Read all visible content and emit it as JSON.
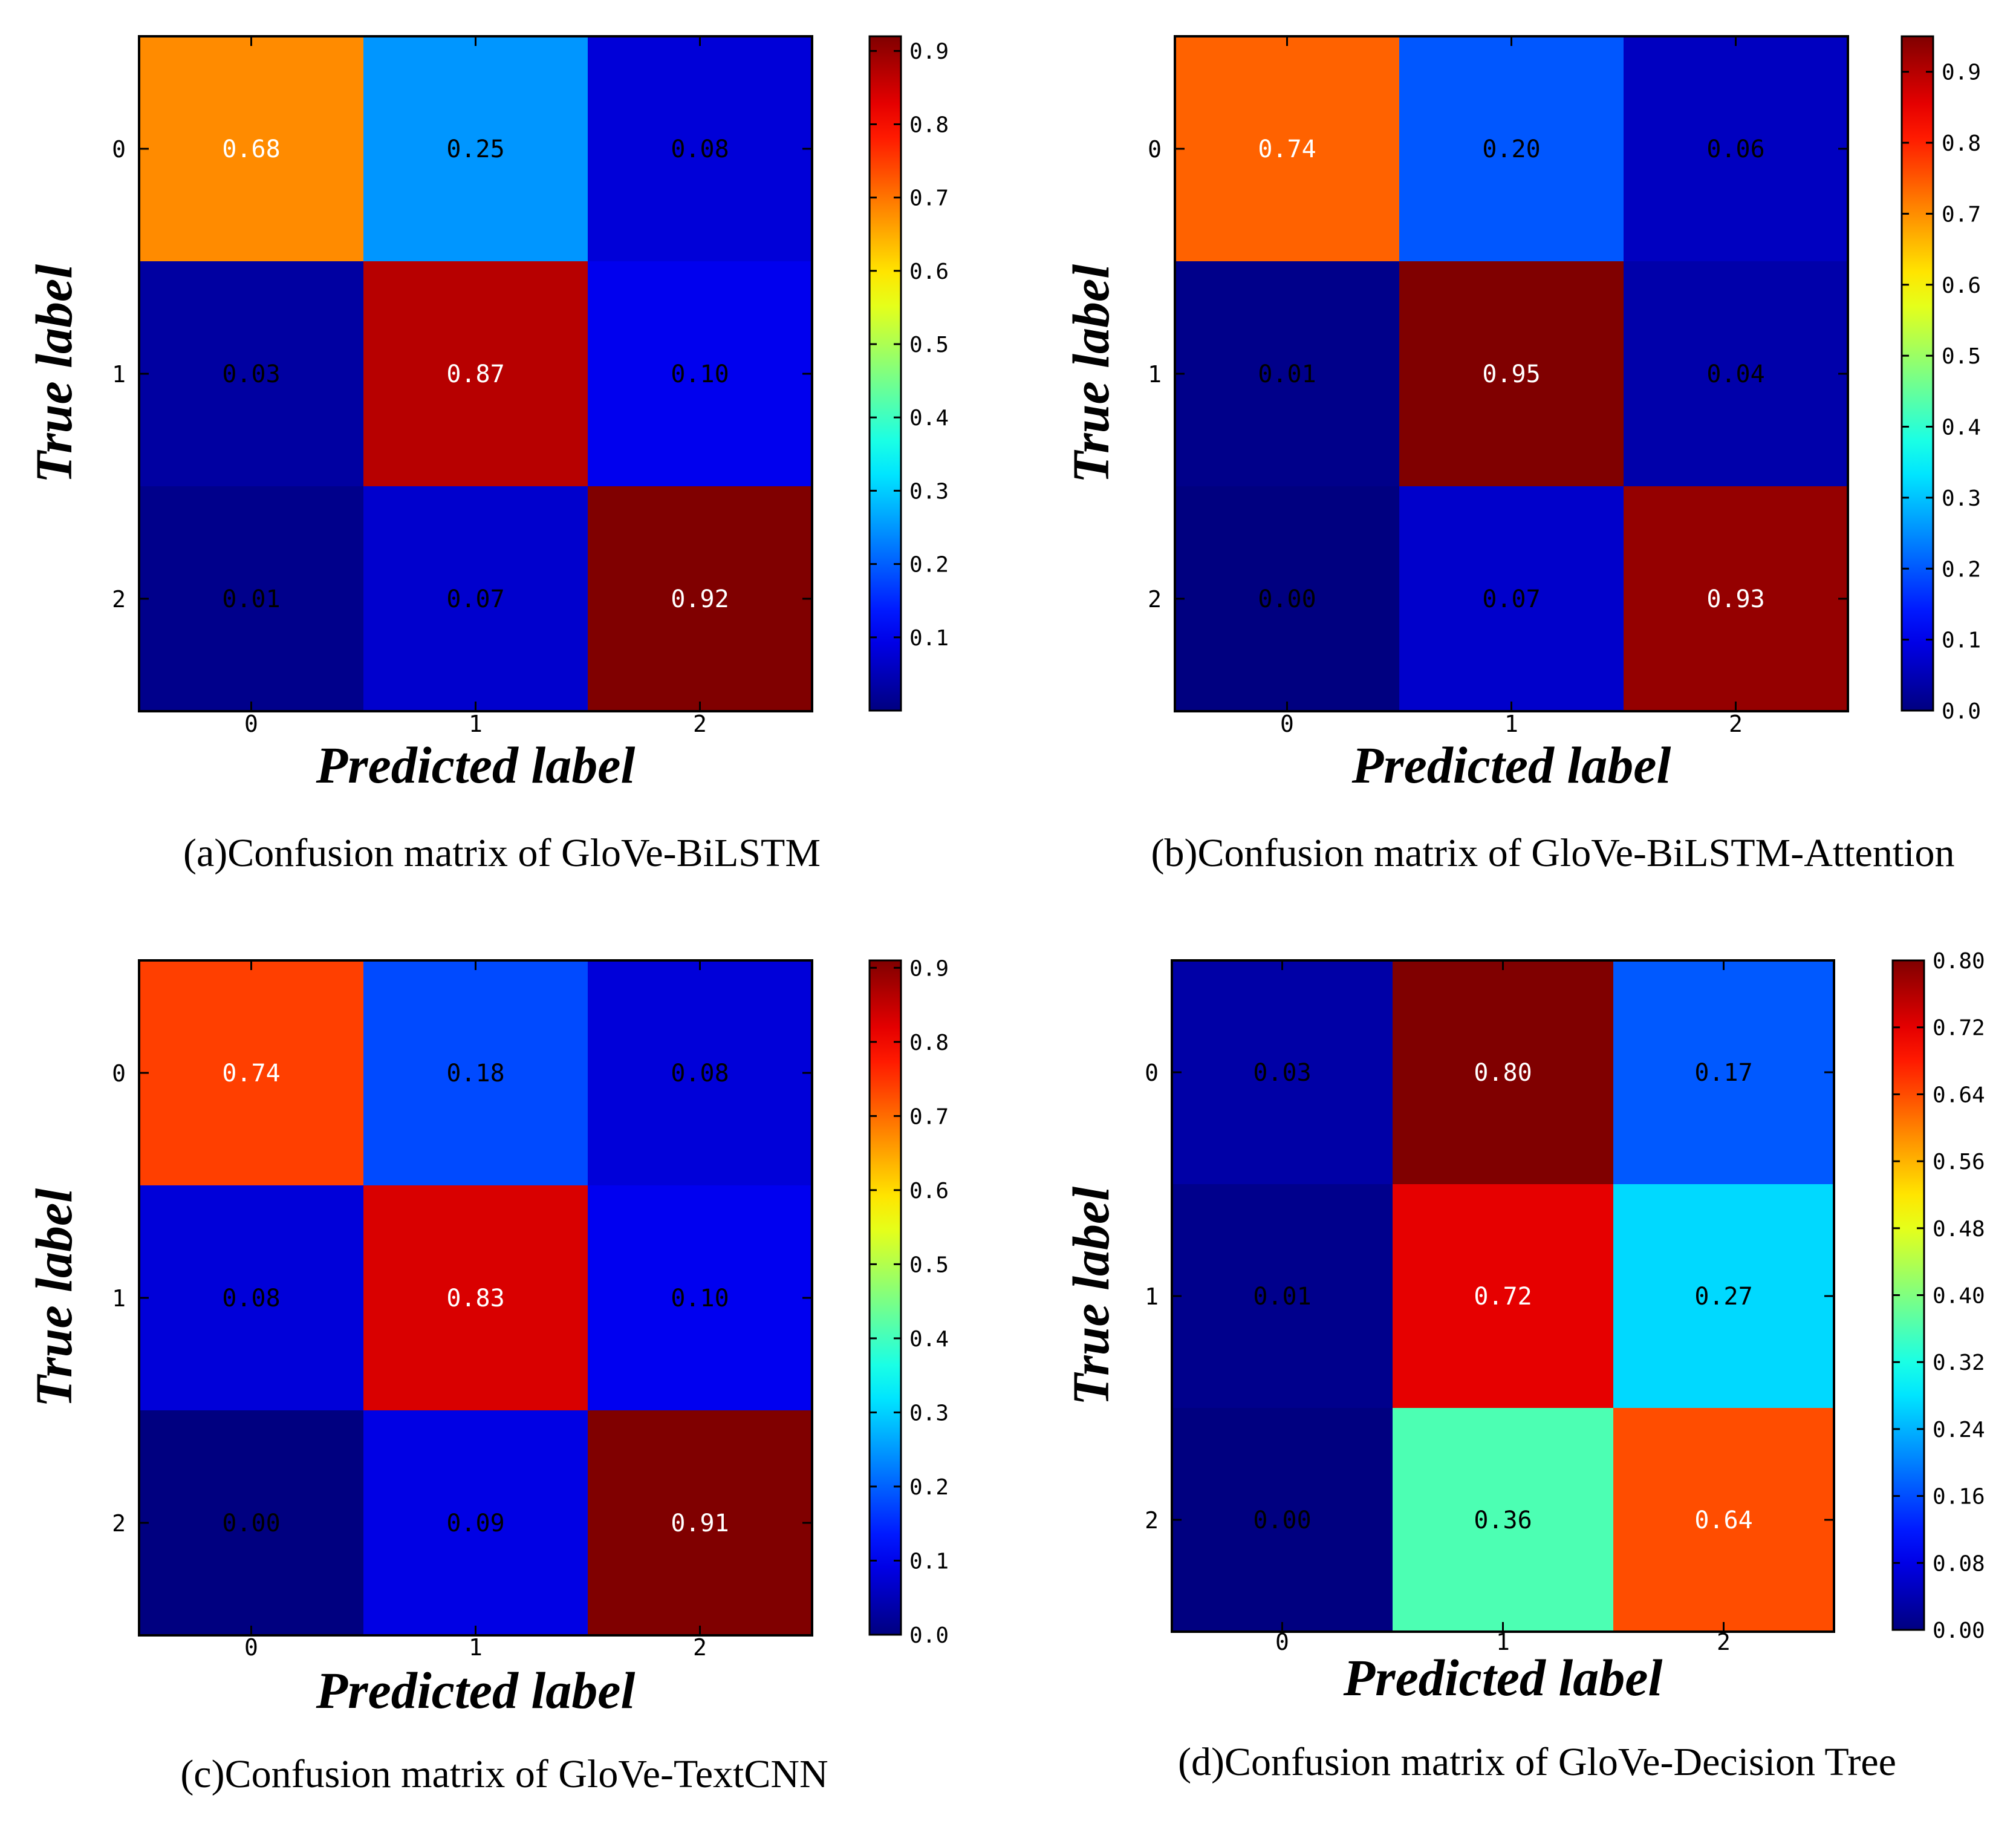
{
  "chart_data": [
    {
      "type": "heatmap",
      "caption": "(a)Confusion matrix of GloVe-BiLSTM",
      "xlabel": "Predicted label",
      "ylabel": "True label",
      "x_categories": [
        "0",
        "1",
        "2"
      ],
      "y_categories": [
        "0",
        "1",
        "2"
      ],
      "values": [
        [
          0.68,
          0.25,
          0.08
        ],
        [
          0.03,
          0.87,
          0.1
        ],
        [
          0.01,
          0.07,
          0.92
        ]
      ],
      "cell_labels": [
        [
          "0.68",
          "0.25",
          "0.08"
        ],
        [
          "0.03",
          "0.87",
          "0.10"
        ],
        [
          "0.01",
          "0.07",
          "0.92"
        ]
      ],
      "colormap": "jet",
      "color_range": [
        0.0,
        0.92
      ],
      "colorbar_ticks": [
        0.1,
        0.2,
        0.3,
        0.4,
        0.5,
        0.6,
        0.7,
        0.8,
        0.9
      ],
      "colorbar_tick_labels": [
        "0.1",
        "0.2",
        "0.3",
        "0.4",
        "0.5",
        "0.6",
        "0.7",
        "0.8",
        "0.9"
      ]
    },
    {
      "type": "heatmap",
      "caption": "(b)Confusion matrix of GloVe-BiLSTM-Attention",
      "xlabel": "Predicted label",
      "ylabel": "True label",
      "x_categories": [
        "0",
        "1",
        "2"
      ],
      "y_categories": [
        "0",
        "1",
        "2"
      ],
      "values": [
        [
          0.74,
          0.2,
          0.06
        ],
        [
          0.01,
          0.95,
          0.04
        ],
        [
          0.0,
          0.07,
          0.93
        ]
      ],
      "cell_labels": [
        [
          "0.74",
          "0.20",
          "0.06"
        ],
        [
          "0.01",
          "0.95",
          "0.04"
        ],
        [
          "0.00",
          "0.07",
          "0.93"
        ]
      ],
      "colormap": "jet",
      "color_range": [
        0.0,
        0.95
      ],
      "colorbar_ticks": [
        0.0,
        0.1,
        0.2,
        0.3,
        0.4,
        0.5,
        0.6,
        0.7,
        0.8,
        0.9
      ],
      "colorbar_tick_labels": [
        "0.0",
        "0.1",
        "0.2",
        "0.3",
        "0.4",
        "0.5",
        "0.6",
        "0.7",
        "0.8",
        "0.9"
      ]
    },
    {
      "type": "heatmap",
      "caption": "(c)Confusion matrix of GloVe-TextCNN",
      "xlabel": "Predicted label",
      "ylabel": "True label",
      "x_categories": [
        "0",
        "1",
        "2"
      ],
      "y_categories": [
        "0",
        "1",
        "2"
      ],
      "values": [
        [
          0.74,
          0.18,
          0.08
        ],
        [
          0.08,
          0.83,
          0.1
        ],
        [
          0.0,
          0.09,
          0.91
        ]
      ],
      "cell_labels": [
        [
          "0.74",
          "0.18",
          "0.08"
        ],
        [
          "0.08",
          "0.83",
          "0.10"
        ],
        [
          "0.00",
          "0.09",
          "0.91"
        ]
      ],
      "colormap": "jet",
      "color_range": [
        0.0,
        0.91
      ],
      "colorbar_ticks": [
        0.0,
        0.1,
        0.2,
        0.3,
        0.4,
        0.5,
        0.6,
        0.7,
        0.8,
        0.9
      ],
      "colorbar_tick_labels": [
        "0.0",
        "0.1",
        "0.2",
        "0.3",
        "0.4",
        "0.5",
        "0.6",
        "0.7",
        "0.8",
        "0.9"
      ]
    },
    {
      "type": "heatmap",
      "caption": "(d)Confusion matrix of GloVe-Decision Tree",
      "xlabel": "Predicted label",
      "ylabel": "True label",
      "x_categories": [
        "0",
        "1",
        "2"
      ],
      "y_categories": [
        "0",
        "1",
        "2"
      ],
      "values": [
        [
          0.03,
          0.8,
          0.17
        ],
        [
          0.01,
          0.72,
          0.27
        ],
        [
          0.0,
          0.36,
          0.64
        ]
      ],
      "cell_labels": [
        [
          "0.03",
          "0.80",
          "0.17"
        ],
        [
          "0.01",
          "0.72",
          "0.27"
        ],
        [
          "0.00",
          "0.36",
          "0.64"
        ]
      ],
      "colormap": "jet",
      "color_range": [
        0.0,
        0.8
      ],
      "colorbar_ticks": [
        0.0,
        0.08,
        0.16,
        0.24,
        0.32,
        0.4,
        0.48,
        0.56,
        0.64,
        0.72,
        0.8
      ],
      "colorbar_tick_labels": [
        "0.00",
        "0.08",
        "0.16",
        "0.24",
        "0.32",
        "0.40",
        "0.48",
        "0.56",
        "0.64",
        "0.72",
        "0.80"
      ]
    }
  ]
}
